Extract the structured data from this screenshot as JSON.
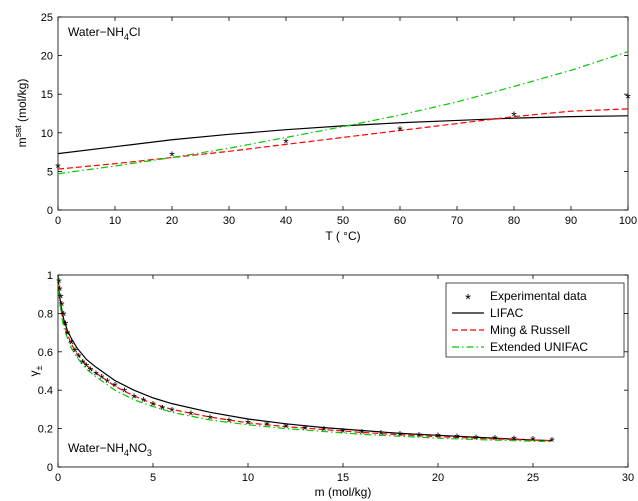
{
  "chart_data": [
    {
      "type": "line",
      "panel_label": "Water−NH",
      "panel_label_sub": "4",
      "panel_label_tail": "Cl",
      "xlabel": "T ( °C)",
      "ylabel_main": "m",
      "ylabel_sup": "sat",
      "ylabel_tail": " (mol/kg)",
      "xlim": [
        0,
        100
      ],
      "ylim": [
        0,
        25
      ],
      "xticks": [
        0,
        10,
        20,
        30,
        40,
        50,
        60,
        70,
        80,
        90,
        100
      ],
      "yticks": [
        0,
        5,
        10,
        15,
        20,
        25
      ],
      "grid": false,
      "series": [
        {
          "key": "exp",
          "style": "markers",
          "color": "#000000",
          "x": [
            0,
            20,
            40,
            60,
            80,
            100
          ],
          "y": [
            5.5,
            7.0,
            8.7,
            10.3,
            12.2,
            14.5
          ]
        },
        {
          "key": "lifac",
          "style": "solid",
          "color": "#000000",
          "x": [
            0,
            10,
            20,
            30,
            40,
            50,
            60,
            70,
            80,
            90,
            100
          ],
          "y": [
            7.3,
            8.2,
            9.1,
            9.8,
            10.4,
            10.9,
            11.3,
            11.6,
            11.9,
            12.1,
            12.2
          ]
        },
        {
          "key": "ming",
          "style": "dashed",
          "color": "#ff0000",
          "x": [
            0,
            10,
            20,
            30,
            40,
            50,
            60,
            70,
            80,
            90,
            100
          ],
          "y": [
            5.3,
            6.0,
            6.8,
            7.6,
            8.5,
            9.4,
            10.3,
            11.2,
            12.1,
            12.8,
            13.1
          ]
        },
        {
          "key": "ext",
          "style": "dashdot",
          "color": "#00cc00",
          "x": [
            0,
            10,
            20,
            30,
            40,
            50,
            60,
            70,
            80,
            90,
            100
          ],
          "y": [
            4.7,
            5.7,
            6.8,
            8.0,
            9.4,
            10.8,
            12.3,
            14.0,
            16.0,
            18.1,
            20.5
          ]
        }
      ]
    },
    {
      "type": "line",
      "panel_label": "Water−NH",
      "panel_label_sub": "4",
      "panel_label_mid": "NO",
      "panel_label_sub2": "3",
      "xlabel": "m (mol/kg)",
      "ylabel_main": "γ",
      "ylabel_sub": "±",
      "xlim": [
        0,
        30
      ],
      "ylim": [
        0,
        1
      ],
      "xticks": [
        0,
        5,
        10,
        15,
        20,
        25,
        30
      ],
      "yticks": [
        0,
        0.2,
        0.4,
        0.6,
        0.8,
        1
      ],
      "ytick_labels": [
        "0",
        "0.2",
        "0.4",
        "0.6",
        "0.8",
        "1"
      ],
      "grid": false,
      "legend_position": "top-right",
      "legend": [
        {
          "key": "exp",
          "label": "Experimental data"
        },
        {
          "key": "lifac",
          "label": "LIFAC"
        },
        {
          "key": "ming",
          "label": "Ming & Russell"
        },
        {
          "key": "ext",
          "label": "Extended UNIFAC"
        }
      ],
      "series": [
        {
          "key": "exp",
          "style": "markers",
          "color": "#000000",
          "x": [
            0.05,
            0.1,
            0.15,
            0.2,
            0.3,
            0.4,
            0.5,
            0.7,
            0.9,
            1.1,
            1.3,
            1.5,
            1.7,
            2.0,
            2.3,
            2.6,
            3.0,
            3.5,
            4.0,
            4.5,
            5.0,
            5.5,
            6.0,
            7.0,
            8.0,
            9.0,
            10.0,
            11.0,
            12.0,
            13.0,
            14.0,
            15.0,
            16.0,
            17.0,
            18.0,
            19.0,
            20.0,
            21.0,
            22.0,
            23.0,
            24.0,
            25.0,
            26.0
          ],
          "y": [
            0.96,
            0.92,
            0.88,
            0.84,
            0.79,
            0.74,
            0.69,
            0.64,
            0.6,
            0.57,
            0.54,
            0.52,
            0.5,
            0.48,
            0.46,
            0.44,
            0.42,
            0.39,
            0.36,
            0.34,
            0.32,
            0.3,
            0.29,
            0.27,
            0.25,
            0.235,
            0.225,
            0.215,
            0.205,
            0.195,
            0.19,
            0.18,
            0.175,
            0.17,
            0.165,
            0.16,
            0.155,
            0.15,
            0.147,
            0.143,
            0.14,
            0.137,
            0.133
          ]
        },
        {
          "key": "lifac",
          "style": "solid",
          "color": "#000000",
          "x": [
            0.0,
            0.05,
            0.1,
            0.2,
            0.3,
            0.5,
            0.7,
            1.0,
            1.5,
            2.0,
            3.0,
            4.0,
            5.0,
            6.0,
            8.0,
            10.0,
            12.0,
            14.0,
            16.0,
            18.0,
            20.0,
            22.0,
            24.0,
            26.0
          ],
          "y": [
            1.0,
            0.93,
            0.88,
            0.82,
            0.77,
            0.71,
            0.67,
            0.62,
            0.56,
            0.52,
            0.45,
            0.4,
            0.36,
            0.33,
            0.285,
            0.25,
            0.225,
            0.205,
            0.19,
            0.175,
            0.165,
            0.155,
            0.145,
            0.137
          ]
        },
        {
          "key": "ming",
          "style": "dashed",
          "color": "#ff0000",
          "x": [
            0.0,
            0.05,
            0.1,
            0.2,
            0.3,
            0.5,
            0.7,
            1.0,
            1.5,
            2.0,
            3.0,
            4.0,
            5.0,
            6.0,
            8.0,
            10.0,
            12.0,
            14.0,
            16.0,
            18.0,
            20.0,
            22.0,
            24.0,
            26.0
          ],
          "y": [
            1.0,
            0.91,
            0.86,
            0.8,
            0.75,
            0.69,
            0.64,
            0.59,
            0.53,
            0.49,
            0.42,
            0.37,
            0.33,
            0.3,
            0.26,
            0.23,
            0.21,
            0.195,
            0.18,
            0.168,
            0.158,
            0.15,
            0.143,
            0.137
          ]
        },
        {
          "key": "ext",
          "style": "dashdot",
          "color": "#00cc00",
          "x": [
            0.0,
            0.05,
            0.1,
            0.2,
            0.3,
            0.5,
            0.7,
            1.0,
            1.5,
            2.0,
            3.0,
            4.0,
            5.0,
            6.0,
            8.0,
            10.0,
            12.0,
            14.0,
            16.0,
            18.0,
            20.0,
            22.0,
            24.0,
            26.0
          ],
          "y": [
            1.0,
            0.9,
            0.85,
            0.78,
            0.73,
            0.67,
            0.62,
            0.57,
            0.51,
            0.47,
            0.4,
            0.35,
            0.315,
            0.285,
            0.245,
            0.22,
            0.2,
            0.185,
            0.17,
            0.16,
            0.15,
            0.143,
            0.137,
            0.132
          ]
        }
      ]
    }
  ]
}
